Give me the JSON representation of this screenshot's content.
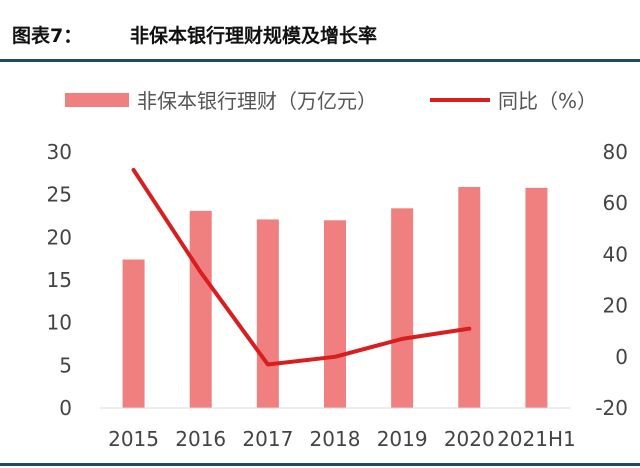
{
  "figure": {
    "prefix": "图表7：",
    "title": "非保本银行理财规模及增长率"
  },
  "chart_data": {
    "type": "bar+line",
    "categories": [
      "2015",
      "2016",
      "2017",
      "2018",
      "2019",
      "2020",
      "2021H1"
    ],
    "series": [
      {
        "name": "非保本银行理财（万亿元）",
        "type": "bar",
        "axis": "left",
        "color": "#f08080",
        "values": [
          17.4,
          23.1,
          22.1,
          22.0,
          23.4,
          25.9,
          25.8
        ]
      },
      {
        "name": "同比（%）",
        "type": "line",
        "axis": "right",
        "color": "#d81e1e",
        "values": [
          73,
          33,
          -3,
          0,
          7,
          11,
          null
        ]
      }
    ],
    "y_left": {
      "lim": [
        0,
        30
      ],
      "ticks": [
        0,
        5,
        10,
        15,
        20,
        25,
        30
      ]
    },
    "y_right": {
      "lim": [
        -20,
        80
      ],
      "ticks": [
        -20,
        0,
        20,
        40,
        60,
        80
      ]
    },
    "legend": "top"
  }
}
